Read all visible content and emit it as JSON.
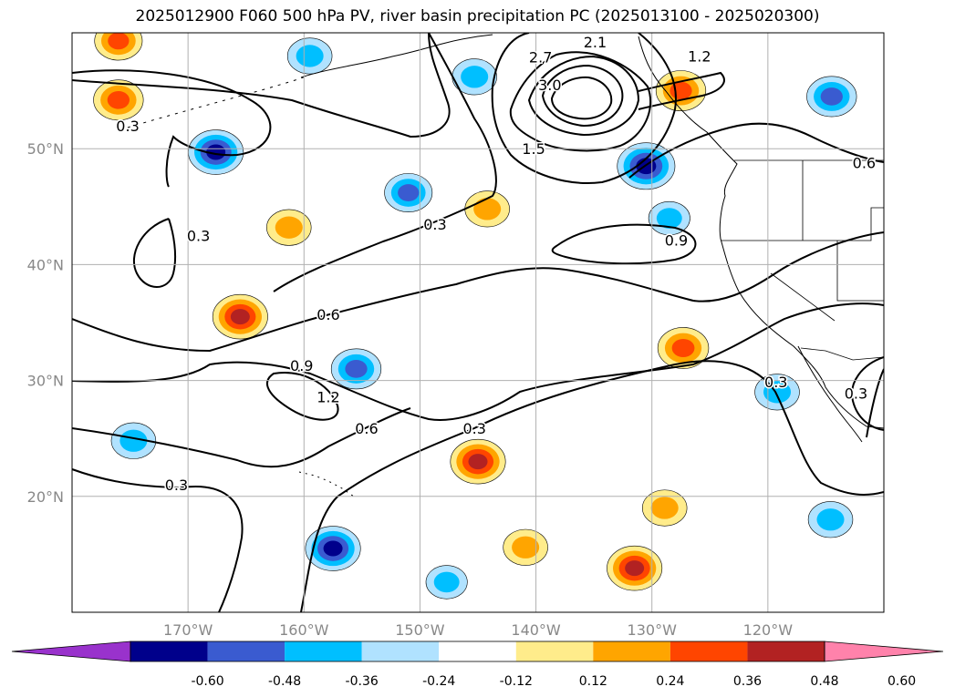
{
  "title": "2025012900 F060 500 hPa PV, river basin precipitation PC (2025013100 - 2025020300)",
  "map": {
    "lon_range": [
      -180,
      -110
    ],
    "lat_range": [
      10,
      60
    ],
    "lon_ticks": [
      {
        "lon": -170,
        "label": "170°W"
      },
      {
        "lon": -160,
        "label": "160°W"
      },
      {
        "lon": -150,
        "label": "150°W"
      },
      {
        "lon": -140,
        "label": "140°W"
      },
      {
        "lon": -130,
        "label": "130°W"
      },
      {
        "lon": -120,
        "label": "120°W"
      }
    ],
    "lat_ticks": [
      {
        "lat": 50,
        "label": "50°N"
      },
      {
        "lat": 40,
        "label": "40°N"
      },
      {
        "lat": 30,
        "label": "30°N"
      },
      {
        "lat": 20,
        "label": "20°N"
      }
    ],
    "grid": true,
    "contour_labels": [
      {
        "text": "0.3",
        "lon": -175.2,
        "lat": 52.0
      },
      {
        "text": "0.3",
        "lon": -169.1,
        "lat": 42.5
      },
      {
        "text": "0.3",
        "lon": -148.7,
        "lat": 43.5
      },
      {
        "text": "0.6",
        "lon": -157.9,
        "lat": 35.7
      },
      {
        "text": "0.9",
        "lon": -160.2,
        "lat": 31.3
      },
      {
        "text": "1.2",
        "lon": -157.9,
        "lat": 28.6
      },
      {
        "text": "0.6",
        "lon": -154.6,
        "lat": 25.9
      },
      {
        "text": "0.3",
        "lon": -145.3,
        "lat": 25.9
      },
      {
        "text": "0.3",
        "lon": -171.0,
        "lat": 21.0
      },
      {
        "text": "1.5",
        "lon": -140.2,
        "lat": 50.0
      },
      {
        "text": "3.0",
        "lon": -138.8,
        "lat": 55.5
      },
      {
        "text": "2.7",
        "lon": -139.6,
        "lat": 57.9
      },
      {
        "text": "2.1",
        "lon": -134.9,
        "lat": 59.2
      },
      {
        "text": "1.2",
        "lon": -125.9,
        "lat": 58.0
      },
      {
        "text": "0.9",
        "lon": -127.9,
        "lat": 42.1
      },
      {
        "text": "0.6",
        "lon": -111.7,
        "lat": 48.8
      },
      {
        "text": "0.3",
        "lon": -119.3,
        "lat": 29.9
      },
      {
        "text": "0.3",
        "lon": -112.4,
        "lat": 28.9
      }
    ]
  },
  "colorbar": {
    "levels": [
      "-0.60",
      "-0.48",
      "-0.36",
      "-0.24",
      "-0.12",
      "0.12",
      "0.24",
      "0.36",
      "0.48",
      "0.60"
    ],
    "colors": [
      "#9932cc",
      "#00008b",
      "#3a5bd0",
      "#00bfff",
      "#b0e2ff",
      "#ffffff",
      "#ffec8b",
      "#ffa500",
      "#ff4500",
      "#b22222",
      "#ff82ab"
    ]
  },
  "chart_data": {
    "type": "heatmap",
    "title": "2025012900 F060 500 hPa PV, river basin precipitation PC (2025013100 - 2025020300)",
    "fields": [
      "500 hPa PV (contours)",
      "river basin precipitation PC (shaded)"
    ],
    "contour_levels_shown": [
      0.3,
      0.6,
      0.9,
      1.2,
      1.5,
      2.1,
      2.7,
      3.0
    ],
    "shading_levels": [
      -0.6,
      -0.48,
      -0.36,
      -0.24,
      -0.12,
      0.12,
      0.24,
      0.36,
      0.48,
      0.6
    ],
    "xlim": [
      -180,
      -110
    ],
    "ylim": [
      10,
      60
    ],
    "precip_blobs": [
      {
        "lon": -165.5,
        "lat": 35.5,
        "value": 0.5
      },
      {
        "lon": -145.0,
        "lat": 23.0,
        "value": 0.5
      },
      {
        "lon": -131.5,
        "lat": 13.8,
        "value": 0.5
      },
      {
        "lon": -127.3,
        "lat": 32.8,
        "value": 0.42
      },
      {
        "lon": -176.0,
        "lat": 54.2,
        "value": 0.4
      },
      {
        "lon": -127.5,
        "lat": 55.0,
        "value": 0.4
      },
      {
        "lon": -176.0,
        "lat": 59.3,
        "value": 0.36
      },
      {
        "lon": -161.3,
        "lat": 43.2,
        "value": 0.3
      },
      {
        "lon": -144.2,
        "lat": 44.8,
        "value": 0.3
      },
      {
        "lon": -140.9,
        "lat": 15.6,
        "value": 0.3
      },
      {
        "lon": -128.9,
        "lat": 19.0,
        "value": 0.3
      },
      {
        "lon": -157.5,
        "lat": 15.5,
        "value": -0.5
      },
      {
        "lon": -130.5,
        "lat": 48.5,
        "value": -0.55
      },
      {
        "lon": -167.6,
        "lat": 49.7,
        "value": -0.5
      },
      {
        "lon": -155.5,
        "lat": 31.0,
        "value": -0.4
      },
      {
        "lon": -114.5,
        "lat": 54.5,
        "value": -0.4
      },
      {
        "lon": -151.0,
        "lat": 46.2,
        "value": -0.36
      },
      {
        "lon": -159.5,
        "lat": 58.0,
        "value": -0.3
      },
      {
        "lon": -145.3,
        "lat": 56.2,
        "value": -0.3
      },
      {
        "lon": -114.6,
        "lat": 18.0,
        "value": -0.3
      },
      {
        "lon": -119.2,
        "lat": 29.0,
        "value": -0.3
      },
      {
        "lon": -174.7,
        "lat": 24.8,
        "value": -0.3
      },
      {
        "lon": -128.5,
        "lat": 44.0,
        "value": -0.24
      },
      {
        "lon": -147.7,
        "lat": 12.6,
        "value": -0.24
      }
    ]
  }
}
